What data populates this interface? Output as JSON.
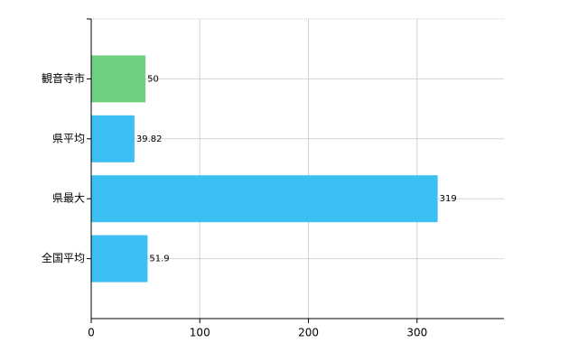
{
  "chart_data": {
    "type": "hbar",
    "categories": [
      "観音寺市",
      "県平均",
      "県最大",
      "全国平均"
    ],
    "values": [
      50,
      39.82,
      319,
      51.9
    ],
    "colors": [
      "#6dd07e",
      "#3cbff2",
      "#3cbff2",
      "#3cbff2"
    ],
    "xlim": [
      0,
      380
    ],
    "xticks": [
      0,
      100,
      200,
      300
    ],
    "grid": true
  }
}
